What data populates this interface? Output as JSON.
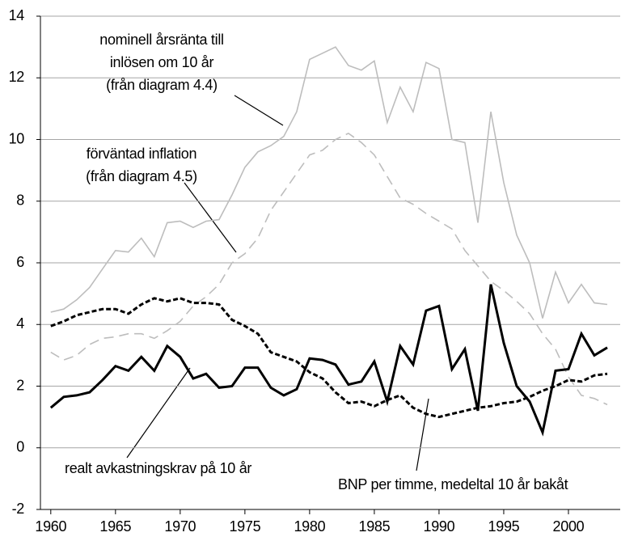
{
  "chart_data": {
    "type": "line",
    "x": [
      1960,
      1961,
      1962,
      1963,
      1964,
      1965,
      1966,
      1967,
      1968,
      1969,
      1970,
      1971,
      1972,
      1973,
      1974,
      1975,
      1976,
      1977,
      1978,
      1979,
      1980,
      1981,
      1982,
      1983,
      1984,
      1985,
      1986,
      1987,
      1988,
      1989,
      1990,
      1991,
      1992,
      1993,
      1994,
      1995,
      1996,
      1997,
      1998,
      1999,
      2000,
      2001,
      2002,
      2003
    ],
    "series": [
      {
        "name": [
          "nominell årsränta till",
          "inlösen om 10 år",
          "(från diagram 4.4)"
        ],
        "color": "#bdbdbd",
        "dash": false,
        "values": [
          4.4,
          4.5,
          4.8,
          5.2,
          5.8,
          6.4,
          6.35,
          6.8,
          6.2,
          7.3,
          7.35,
          7.15,
          7.35,
          7.4,
          8.2,
          9.1,
          9.6,
          9.8,
          10.1,
          10.9,
          12.6,
          12.8,
          13.0,
          12.4,
          12.25,
          12.55,
          10.55,
          11.7,
          10.9,
          12.5,
          12.3,
          10.0,
          9.9,
          7.3,
          10.9,
          8.6,
          6.9,
          6.0,
          4.2,
          5.7,
          4.7,
          5.3,
          4.7,
          4.65
        ]
      },
      {
        "name": [
          "förväntad inflation",
          "(från diagram 4.5)"
        ],
        "color": "#bdbdbd",
        "dash": true,
        "values": [
          3.1,
          2.85,
          3.0,
          3.35,
          3.55,
          3.6,
          3.7,
          3.7,
          3.55,
          3.8,
          4.1,
          4.6,
          4.9,
          5.3,
          6.0,
          6.3,
          6.8,
          7.7,
          8.3,
          8.9,
          9.5,
          9.65,
          10.0,
          10.2,
          9.9,
          9.5,
          8.8,
          8.1,
          7.9,
          7.6,
          7.35,
          7.1,
          6.4,
          5.9,
          5.4,
          5.1,
          4.75,
          4.35,
          3.7,
          3.2,
          2.3,
          1.7,
          1.6,
          1.4
        ]
      },
      {
        "name": [
          "realt avkastningskrav på 10 år"
        ],
        "color": "#000000",
        "dash": false,
        "values": [
          1.3,
          1.65,
          1.7,
          1.8,
          2.2,
          2.65,
          2.5,
          2.95,
          2.5,
          3.3,
          2.95,
          2.25,
          2.4,
          1.95,
          2.0,
          2.6,
          2.6,
          1.95,
          1.7,
          1.9,
          2.9,
          2.85,
          2.7,
          2.05,
          2.15,
          2.8,
          1.5,
          3.3,
          2.7,
          4.45,
          4.6,
          2.55,
          3.2,
          1.2,
          5.3,
          3.4,
          2.0,
          1.5,
          0.5,
          2.5,
          2.55,
          3.7,
          3.0,
          3.25
        ]
      },
      {
        "name": [
          "BNP per timme, medeltal 10 år bakåt"
        ],
        "color": "#000000",
        "dash": true,
        "values": [
          3.95,
          4.1,
          4.3,
          4.4,
          4.5,
          4.5,
          4.35,
          4.65,
          4.85,
          4.75,
          4.85,
          4.7,
          4.7,
          4.65,
          4.15,
          3.95,
          3.7,
          3.1,
          2.95,
          2.8,
          2.45,
          2.25,
          1.8,
          1.45,
          1.5,
          1.35,
          1.55,
          1.7,
          1.3,
          1.1,
          1.0,
          1.1,
          1.2,
          1.3,
          1.35,
          1.45,
          1.5,
          1.65,
          1.85,
          2.0,
          2.2,
          2.15,
          2.35,
          2.4
        ]
      }
    ],
    "xlim": [
      1959.2,
      2004
    ],
    "xticks": [
      1960,
      1965,
      1970,
      1975,
      1980,
      1985,
      1990,
      1995,
      2000
    ],
    "ylim": [
      -2,
      14
    ],
    "yticks": [
      -2,
      0,
      2,
      4,
      6,
      8,
      10,
      12,
      14
    ],
    "grid": true
  }
}
